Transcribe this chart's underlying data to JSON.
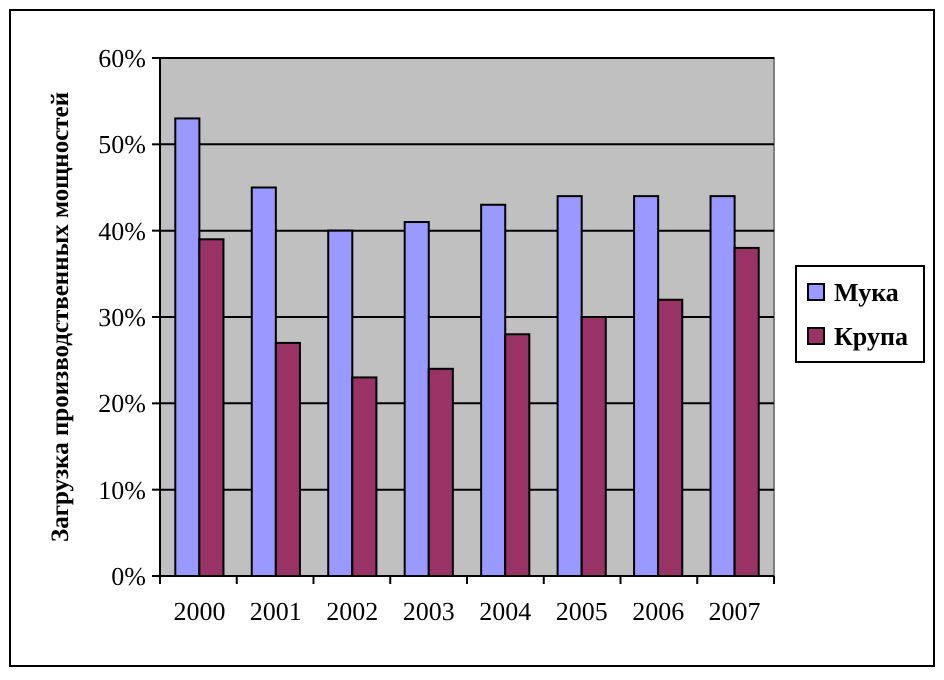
{
  "chart_data": {
    "type": "bar",
    "ylabel": "Загрузка производственных мощностей",
    "categories": [
      "2000",
      "2001",
      "2002",
      "2003",
      "2004",
      "2005",
      "2006",
      "2007"
    ],
    "series": [
      {
        "name": "Мука",
        "color": "#9999ff",
        "values": [
          53,
          45,
          40,
          41,
          43,
          44,
          44,
          44
        ]
      },
      {
        "name": "Крупа",
        "color": "#993366",
        "values": [
          39,
          27,
          23,
          24,
          28,
          30,
          32,
          38
        ]
      }
    ],
    "ylim": [
      0,
      60
    ],
    "yticks": [
      {
        "value": 0,
        "label": "0%"
      },
      {
        "value": 10,
        "label": "10%"
      },
      {
        "value": 20,
        "label": "20%"
      },
      {
        "value": 30,
        "label": "30%"
      },
      {
        "value": 40,
        "label": "40%"
      },
      {
        "value": 50,
        "label": "50%"
      },
      {
        "value": 60,
        "label": "60%"
      }
    ],
    "grid": "y",
    "legend": "right"
  }
}
